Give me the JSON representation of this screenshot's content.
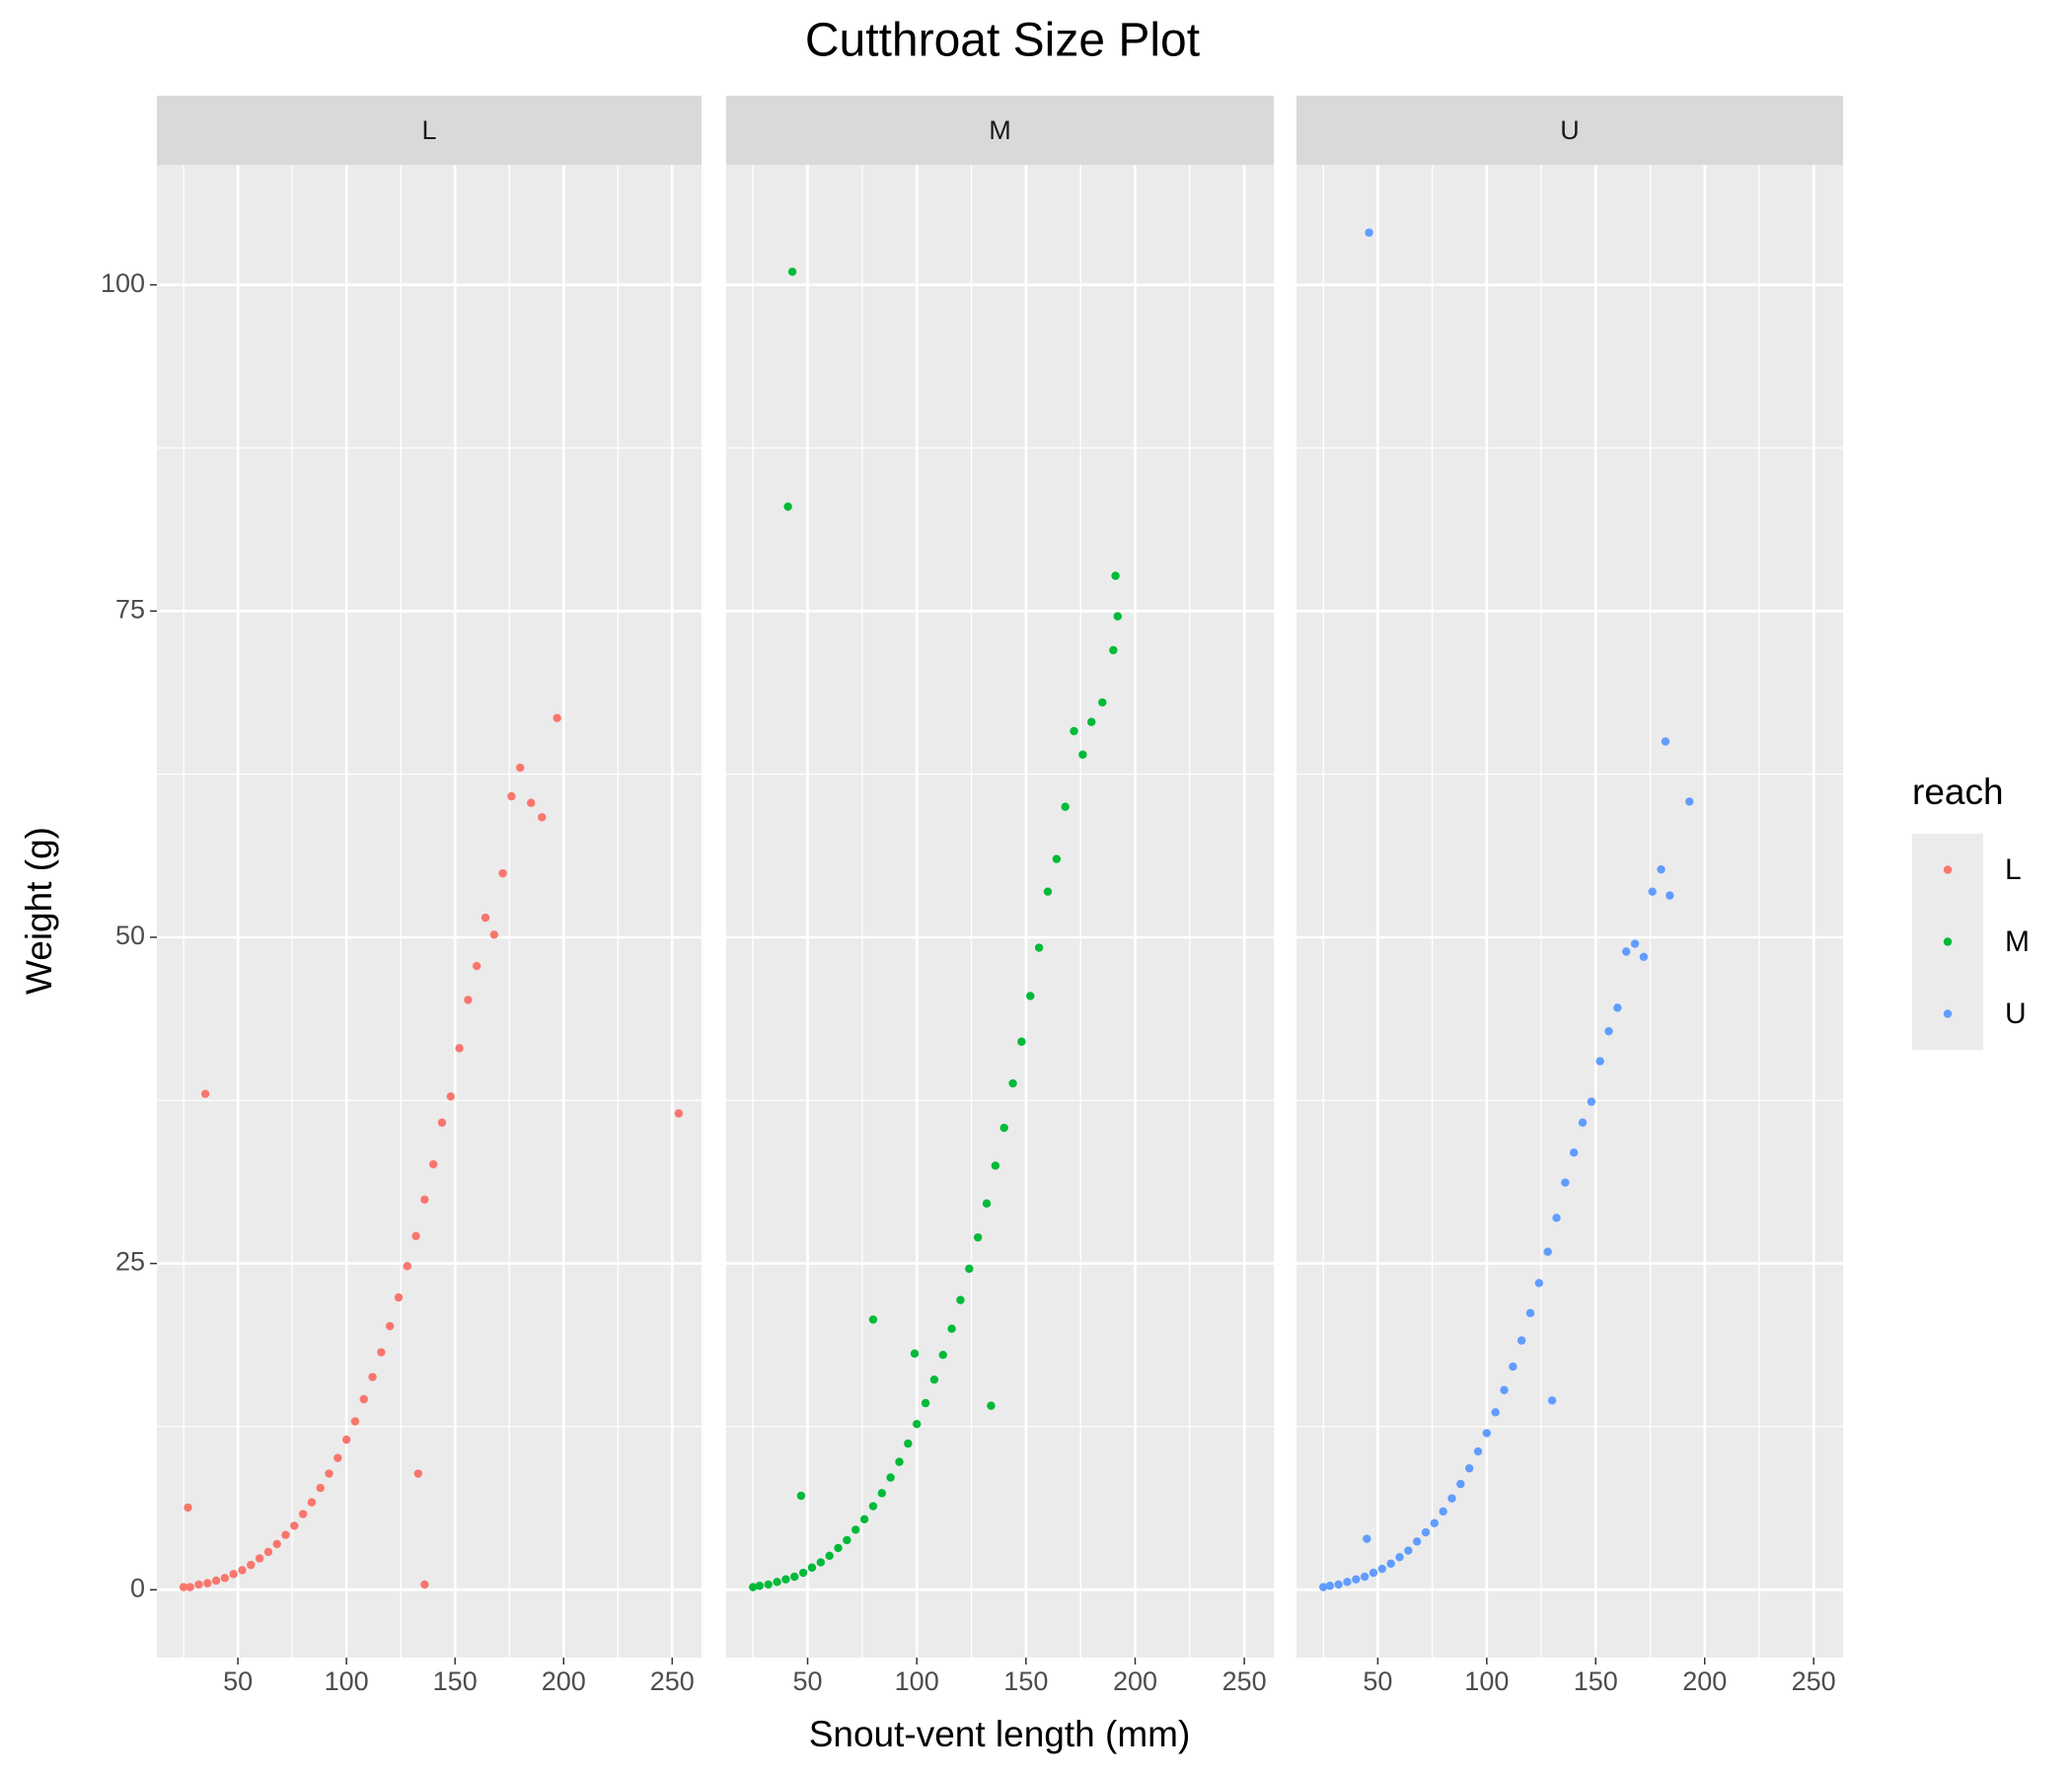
{
  "chart_data": {
    "type": "scatter",
    "title": "Cutthroat Size Plot",
    "x_label": "Snout-vent length (mm)",
    "y_label": "Weight (g)",
    "legend_title": "reach",
    "xlim": [
      12.7,
      263.5
    ],
    "xticks": [
      50,
      100,
      150,
      200,
      250
    ],
    "ylim": [
      -5.2,
      109.2
    ],
    "yticks": [
      0,
      25,
      50,
      75,
      100
    ],
    "grid": true,
    "series": [
      {
        "name": "L",
        "color": "#f8766d",
        "x": [
          25,
          28,
          32,
          36,
          40,
          44,
          48,
          52,
          56,
          60,
          64,
          68,
          72,
          76,
          80,
          84,
          88,
          92,
          96,
          100,
          104,
          108,
          112,
          116,
          120,
          124,
          128,
          132,
          136,
          140,
          144,
          148,
          152,
          156,
          160,
          164,
          168,
          172,
          176,
          180,
          185,
          190,
          27,
          35,
          136,
          133,
          253,
          197
        ],
        "values": [
          0.2,
          0.2,
          0.4,
          0.5,
          0.7,
          0.9,
          1.2,
          1.5,
          1.9,
          2.4,
          2.9,
          3.5,
          4.2,
          4.9,
          5.8,
          6.7,
          7.8,
          8.9,
          10.1,
          11.5,
          12.9,
          14.6,
          16.3,
          18.2,
          20.2,
          22.4,
          24.8,
          27.1,
          29.9,
          32.6,
          35.8,
          37.8,
          41.5,
          45.2,
          47.8,
          51.5,
          50.2,
          54.9,
          60.8,
          63.0,
          60.3,
          59.2,
          6.3,
          38.0,
          0.4,
          8.9,
          36.5,
          66.8
        ]
      },
      {
        "name": "M",
        "color": "#00ba38",
        "x": [
          25,
          28,
          32,
          36,
          40,
          44,
          48,
          52,
          56,
          60,
          64,
          68,
          72,
          76,
          80,
          84,
          88,
          92,
          96,
          100,
          104,
          108,
          112,
          116,
          120,
          124,
          128,
          132,
          136,
          140,
          144,
          148,
          152,
          156,
          160,
          164,
          168,
          172,
          176,
          180,
          185,
          190,
          43,
          41,
          80,
          99,
          47,
          134,
          191,
          192
        ],
        "values": [
          0.2,
          0.3,
          0.4,
          0.6,
          0.8,
          1.0,
          1.3,
          1.7,
          2.1,
          2.6,
          3.2,
          3.8,
          4.6,
          5.4,
          6.4,
          7.4,
          8.6,
          9.8,
          11.2,
          12.7,
          14.3,
          16.1,
          18.0,
          20.0,
          22.2,
          24.6,
          27.0,
          29.6,
          32.5,
          35.4,
          38.8,
          42.0,
          45.5,
          49.2,
          53.5,
          56.0,
          60.0,
          65.8,
          64.0,
          66.5,
          68.0,
          72.0,
          101,
          83,
          20.7,
          18.1,
          7.2,
          14.1,
          77.7,
          74.6
        ]
      },
      {
        "name": "U",
        "color": "#619cff",
        "x": [
          25,
          28,
          32,
          36,
          40,
          44,
          48,
          52,
          56,
          60,
          64,
          68,
          72,
          76,
          80,
          84,
          88,
          92,
          96,
          100,
          104,
          108,
          112,
          116,
          120,
          124,
          128,
          132,
          136,
          140,
          144,
          148,
          152,
          156,
          160,
          164,
          168,
          172,
          176,
          180,
          46,
          182,
          193,
          45,
          130,
          184
        ],
        "values": [
          0.2,
          0.3,
          0.4,
          0.6,
          0.8,
          1.0,
          1.3,
          1.6,
          2.0,
          2.5,
          3.0,
          3.7,
          4.4,
          5.1,
          6.0,
          7.0,
          8.1,
          9.3,
          10.6,
          12.0,
          13.6,
          15.3,
          17.1,
          19.1,
          21.2,
          23.5,
          25.9,
          28.5,
          31.2,
          33.5,
          35.8,
          37.4,
          40.5,
          42.8,
          44.6,
          48.9,
          49.5,
          48.5,
          53.5,
          55.2,
          104,
          65,
          60.4,
          3.9,
          14.5,
          53.2
        ]
      }
    ]
  }
}
